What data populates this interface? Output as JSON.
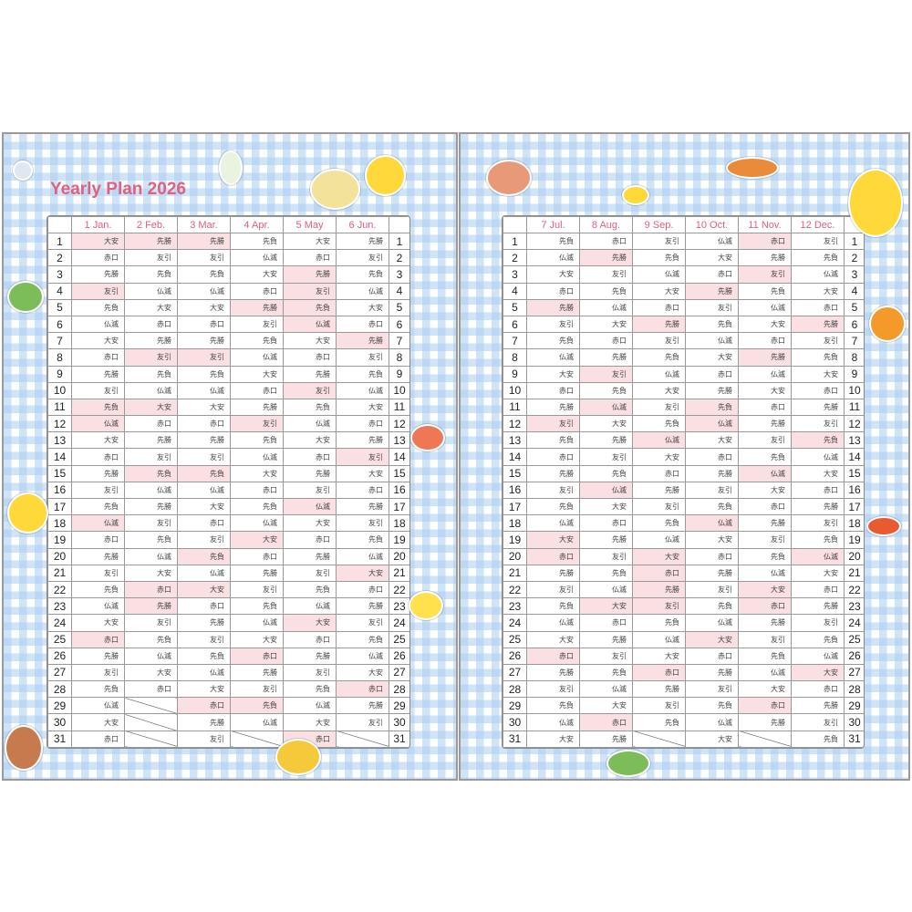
{
  "title": "Yearly Plan 2026",
  "colors": {
    "accent": "#e06080",
    "holiday_fill": "#fadfe3",
    "gingham": "#aacdf0"
  },
  "left": {
    "months": [
      {
        "label": "1 Jan.",
        "rokuyo": [
          "大安",
          "赤口",
          "先勝",
          "友引",
          "先負",
          "仏滅",
          "大安",
          "赤口",
          "先勝",
          "友引",
          "先負",
          "仏滅",
          "大安",
          "赤口",
          "先勝",
          "友引",
          "先負",
          "仏滅",
          "赤口",
          "先勝",
          "友引",
          "先負",
          "仏滅",
          "大安",
          "赤口",
          "先勝",
          "友引",
          "先負",
          "仏滅",
          "大安",
          "赤口"
        ],
        "holidays": [
          1,
          4,
          11,
          12,
          18,
          25
        ]
      },
      {
        "label": "2 Feb.",
        "rokuyo": [
          "先勝",
          "友引",
          "先負",
          "仏滅",
          "大安",
          "赤口",
          "先勝",
          "友引",
          "先負",
          "仏滅",
          "大安",
          "赤口",
          "先勝",
          "友引",
          "先負",
          "仏滅",
          "先勝",
          "友引",
          "先負",
          "仏滅",
          "大安",
          "赤口",
          "先勝",
          "友引",
          "先負",
          "仏滅",
          "大安",
          "赤口"
        ],
        "holidays": [
          1,
          8,
          11,
          15,
          22,
          23
        ]
      },
      {
        "label": "3 Mar.",
        "rokuyo": [
          "先勝",
          "友引",
          "先負",
          "仏滅",
          "大安",
          "赤口",
          "先勝",
          "友引",
          "先負",
          "仏滅",
          "大安",
          "赤口",
          "先勝",
          "友引",
          "先負",
          "仏滅",
          "大安",
          "赤口",
          "友引",
          "先負",
          "仏滅",
          "大安",
          "赤口",
          "先勝",
          "友引",
          "先負",
          "仏滅",
          "大安",
          "赤口",
          "先勝",
          "友引"
        ],
        "holidays": [
          1,
          8,
          15,
          20,
          22,
          29
        ]
      },
      {
        "label": "4 Apr.",
        "rokuyo": [
          "先負",
          "仏滅",
          "大安",
          "赤口",
          "先勝",
          "友引",
          "先負",
          "仏滅",
          "大安",
          "赤口",
          "先勝",
          "友引",
          "先負",
          "仏滅",
          "大安",
          "赤口",
          "先負",
          "仏滅",
          "大安",
          "赤口",
          "先勝",
          "友引",
          "先負",
          "仏滅",
          "大安",
          "赤口",
          "先勝",
          "友引",
          "先負",
          "仏滅"
        ],
        "holidays": [
          5,
          12,
          19,
          26,
          29
        ]
      },
      {
        "label": "5 May",
        "rokuyo": [
          "大安",
          "赤口",
          "先勝",
          "友引",
          "先負",
          "仏滅",
          "大安",
          "赤口",
          "先勝",
          "友引",
          "先負",
          "仏滅",
          "大安",
          "赤口",
          "先勝",
          "友引",
          "仏滅",
          "大安",
          "赤口",
          "先勝",
          "友引",
          "先負",
          "仏滅",
          "大安",
          "赤口",
          "先勝",
          "友引",
          "先負",
          "仏滅",
          "大安",
          "赤口"
        ],
        "holidays": [
          3,
          4,
          5,
          6,
          10,
          17,
          24,
          31
        ]
      },
      {
        "label": "6 Jun.",
        "rokuyo": [
          "先勝",
          "友引",
          "先負",
          "仏滅",
          "大安",
          "赤口",
          "先勝",
          "友引",
          "先負",
          "仏滅",
          "大安",
          "赤口",
          "先勝",
          "友引",
          "大安",
          "赤口",
          "先勝",
          "友引",
          "先負",
          "仏滅",
          "大安",
          "赤口",
          "先勝",
          "友引",
          "先負",
          "仏滅",
          "大安",
          "赤口",
          "先勝",
          "友引"
        ],
        "holidays": [
          7,
          14,
          21,
          28
        ]
      }
    ]
  },
  "right": {
    "months": [
      {
        "label": "7 Jul.",
        "rokuyo": [
          "先負",
          "仏滅",
          "大安",
          "赤口",
          "先勝",
          "友引",
          "先負",
          "仏滅",
          "大安",
          "赤口",
          "先勝",
          "友引",
          "先負",
          "赤口",
          "先勝",
          "友引",
          "先負",
          "仏滅",
          "大安",
          "赤口",
          "先勝",
          "友引",
          "先負",
          "仏滅",
          "大安",
          "赤口",
          "先勝",
          "友引",
          "先負",
          "仏滅",
          "大安"
        ],
        "holidays": [
          5,
          12,
          19,
          20,
          26
        ]
      },
      {
        "label": "8 Aug.",
        "rokuyo": [
          "赤口",
          "先勝",
          "友引",
          "先負",
          "仏滅",
          "大安",
          "赤口",
          "先勝",
          "友引",
          "先負",
          "仏滅",
          "大安",
          "先勝",
          "友引",
          "先負",
          "仏滅",
          "大安",
          "赤口",
          "先勝",
          "友引",
          "先負",
          "仏滅",
          "大安",
          "赤口",
          "先勝",
          "友引",
          "先負",
          "仏滅",
          "大安",
          "赤口",
          "先勝"
        ],
        "holidays": [
          2,
          9,
          11,
          16,
          23,
          30
        ]
      },
      {
        "label": "9 Sep.",
        "rokuyo": [
          "友引",
          "先負",
          "仏滅",
          "大安",
          "赤口",
          "先勝",
          "友引",
          "先負",
          "仏滅",
          "大安",
          "友引",
          "先負",
          "仏滅",
          "大安",
          "赤口",
          "先勝",
          "友引",
          "先負",
          "仏滅",
          "大安",
          "赤口",
          "先勝",
          "友引",
          "先負",
          "仏滅",
          "大安",
          "赤口",
          "先勝",
          "友引",
          "先負"
        ],
        "holidays": [
          6,
          13,
          20,
          21,
          22,
          23,
          27
        ]
      },
      {
        "label": "10 Oct.",
        "rokuyo": [
          "仏滅",
          "大安",
          "赤口",
          "先勝",
          "友引",
          "先負",
          "仏滅",
          "大安",
          "赤口",
          "先勝",
          "先負",
          "仏滅",
          "大安",
          "赤口",
          "先勝",
          "友引",
          "先負",
          "仏滅",
          "大安",
          "赤口",
          "先勝",
          "友引",
          "先負",
          "仏滅",
          "大安",
          "赤口",
          "先勝",
          "友引",
          "先負",
          "仏滅",
          "大安"
        ],
        "holidays": [
          4,
          11,
          12,
          18,
          25
        ]
      },
      {
        "label": "11 Nov.",
        "rokuyo": [
          "赤口",
          "先勝",
          "友引",
          "先負",
          "仏滅",
          "大安",
          "赤口",
          "先勝",
          "仏滅",
          "大安",
          "赤口",
          "先勝",
          "友引",
          "先負",
          "仏滅",
          "大安",
          "赤口",
          "先勝",
          "友引",
          "先負",
          "仏滅",
          "大安",
          "赤口",
          "先勝",
          "友引",
          "先負",
          "仏滅",
          "大安",
          "赤口",
          "先勝"
        ],
        "holidays": [
          1,
          3,
          8,
          15,
          22,
          23,
          29
        ]
      },
      {
        "label": "12 Dec.",
        "rokuyo": [
          "友引",
          "先負",
          "仏滅",
          "大安",
          "赤口",
          "先勝",
          "友引",
          "先負",
          "大安",
          "赤口",
          "先勝",
          "友引",
          "先負",
          "仏滅",
          "大安",
          "赤口",
          "先勝",
          "友引",
          "先負",
          "仏滅",
          "大安",
          "赤口",
          "先勝",
          "友引",
          "先負",
          "仏滅",
          "大安",
          "赤口",
          "先勝",
          "友引",
          "先負"
        ],
        "holidays": [
          6,
          13,
          20,
          27
        ]
      }
    ]
  },
  "stickers": [
    "rilakkuma-bird-sticker",
    "milk-bottle-sticker",
    "shopping-cart-sticker",
    "kiiroitori-sticker",
    "edamame-sticker",
    "condiments-sticker",
    "kiiroitori-sticker",
    "banana-sticker",
    "sausage-sticker",
    "tamagoyaki-sticker",
    "salmon-sticker",
    "sushi-sticker",
    "kiiroitori-sticker",
    "bell-pepper-sticker",
    "pumpkin-sticker",
    "kiiroitori-sticker",
    "broccoli-sticker"
  ]
}
